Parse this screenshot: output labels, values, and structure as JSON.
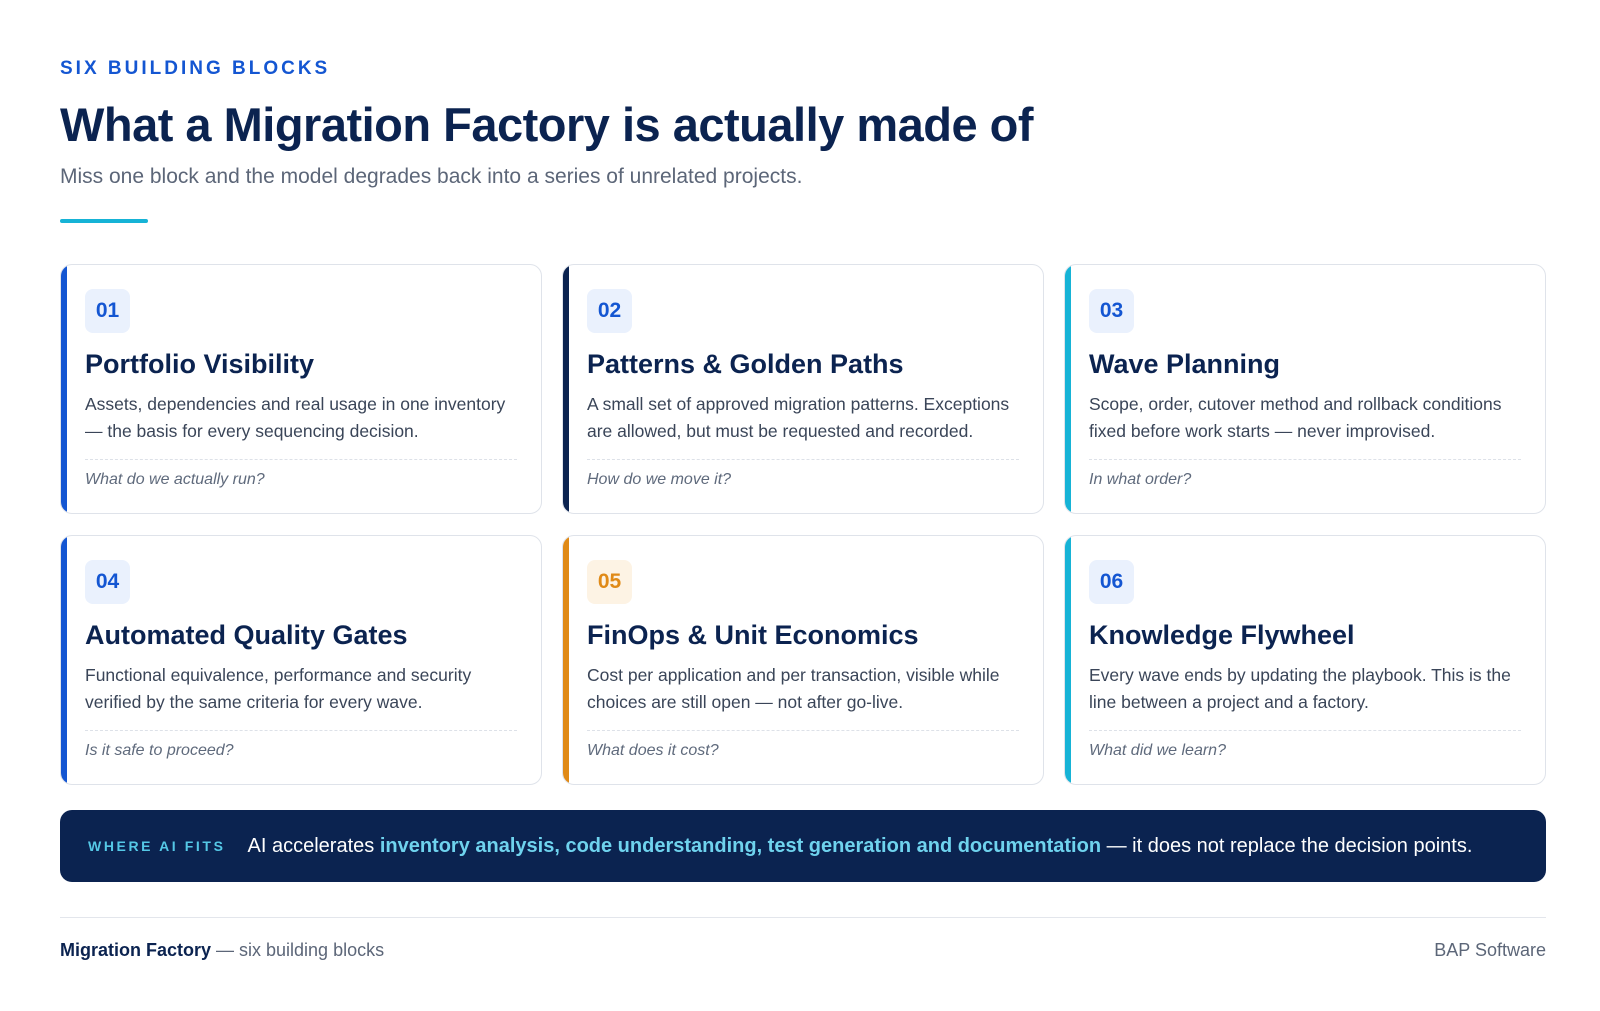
{
  "header": {
    "eyebrow": "SIX BUILDING BLOCKS",
    "title": "What a Migration Factory is actually made of",
    "subtitle": "Miss one block and the model degrades back into a series of unrelated projects."
  },
  "cards": [
    {
      "num": "01",
      "title": "Portfolio Visibility",
      "desc": "Assets, dependencies and real usage in one inventory — the basis for every sequencing decision.",
      "question": "What do we actually run?",
      "accent": "#1456d2",
      "num_color": "#1456d2",
      "num_bg": "#eaf1fd"
    },
    {
      "num": "02",
      "title": "Patterns & Golden Paths",
      "desc": "A small set of approved migration patterns. Exceptions are allowed, but must be requested and recorded.",
      "question": "How do we move it?",
      "accent": "#0b2350",
      "num_color": "#1456d2",
      "num_bg": "#eaf1fd"
    },
    {
      "num": "03",
      "title": "Wave Planning",
      "desc": "Scope, order, cutover method and rollback conditions fixed before work starts — never improvised.",
      "question": "In what order?",
      "accent": "#16b3d6",
      "num_color": "#1456d2",
      "num_bg": "#eaf1fd"
    },
    {
      "num": "04",
      "title": "Automated Quality Gates",
      "desc": "Functional equivalence, performance and security verified by the same criteria for every wave.",
      "question": "Is it safe to proceed?",
      "accent": "#1456d2",
      "num_color": "#1456d2",
      "num_bg": "#eaf1fd"
    },
    {
      "num": "05",
      "title": "FinOps & Unit Economics",
      "desc": "Cost per application and per transaction, visible while choices are still open — not after go-live.",
      "question": "What does it cost?",
      "accent": "#e08a17",
      "num_color": "#e08a17",
      "num_bg": "#fdf3e4"
    },
    {
      "num": "06",
      "title": "Knowledge Flywheel",
      "desc": "Every wave ends by updating the playbook. This is the line between a project and a factory.",
      "question": "What did we learn?",
      "accent": "#16b3d6",
      "num_color": "#1456d2",
      "num_bg": "#eaf1fd"
    }
  ],
  "banner": {
    "tag": "WHERE AI FITS",
    "text_before": "AI accelerates ",
    "highlight": "inventory analysis, code understanding, test generation and documentation",
    "text_after": " — it does not replace the decision points."
  },
  "footer": {
    "brand": "Migration Factory",
    "tagline": " — six building blocks",
    "company": "BAP Software"
  }
}
